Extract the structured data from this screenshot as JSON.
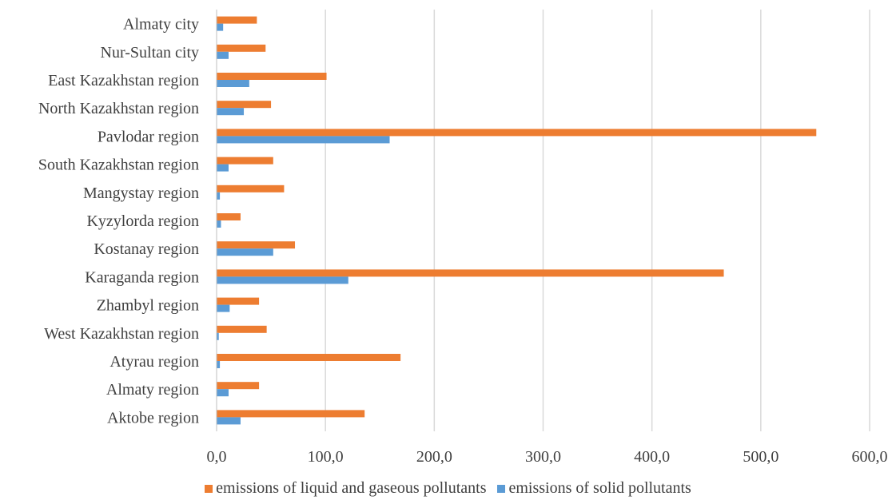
{
  "chart_data": {
    "type": "bar",
    "orientation": "horizontal",
    "categories": [
      "Aktobe region",
      "Almaty region",
      "Atyrau region",
      "West Kazakhstan region",
      "Zhambyl region",
      "Karaganda region",
      "Kostanay region",
      "Kyzylorda region",
      "Mangystay region",
      "South Kazakhstan region",
      "Pavlodar region",
      "North Kazakhstan region",
      "East Kazakhstan region",
      "Nur-Sultan city",
      "Almaty city"
    ],
    "series": [
      {
        "name": "emissions of liquid and gaseous pollutants",
        "color": "#ED7D31",
        "values": [
          136,
          39,
          169,
          46,
          39,
          466,
          72,
          22,
          62,
          52,
          551,
          50,
          101,
          45,
          37
        ]
      },
      {
        "name": "emissions of solid pollutants",
        "color": "#5B9BD5",
        "values": [
          22,
          11,
          3,
          2,
          12,
          121,
          52,
          4,
          3,
          11,
          159,
          25,
          30,
          11,
          6
        ]
      }
    ],
    "xlim": [
      0,
      600
    ],
    "x_ticks": [
      "0,0",
      "100,0",
      "200,0",
      "300,0",
      "400,0",
      "500,0",
      "600,0"
    ],
    "grid": "vertical",
    "legend_position": "bottom",
    "title": "",
    "xlabel": "",
    "ylabel": ""
  }
}
